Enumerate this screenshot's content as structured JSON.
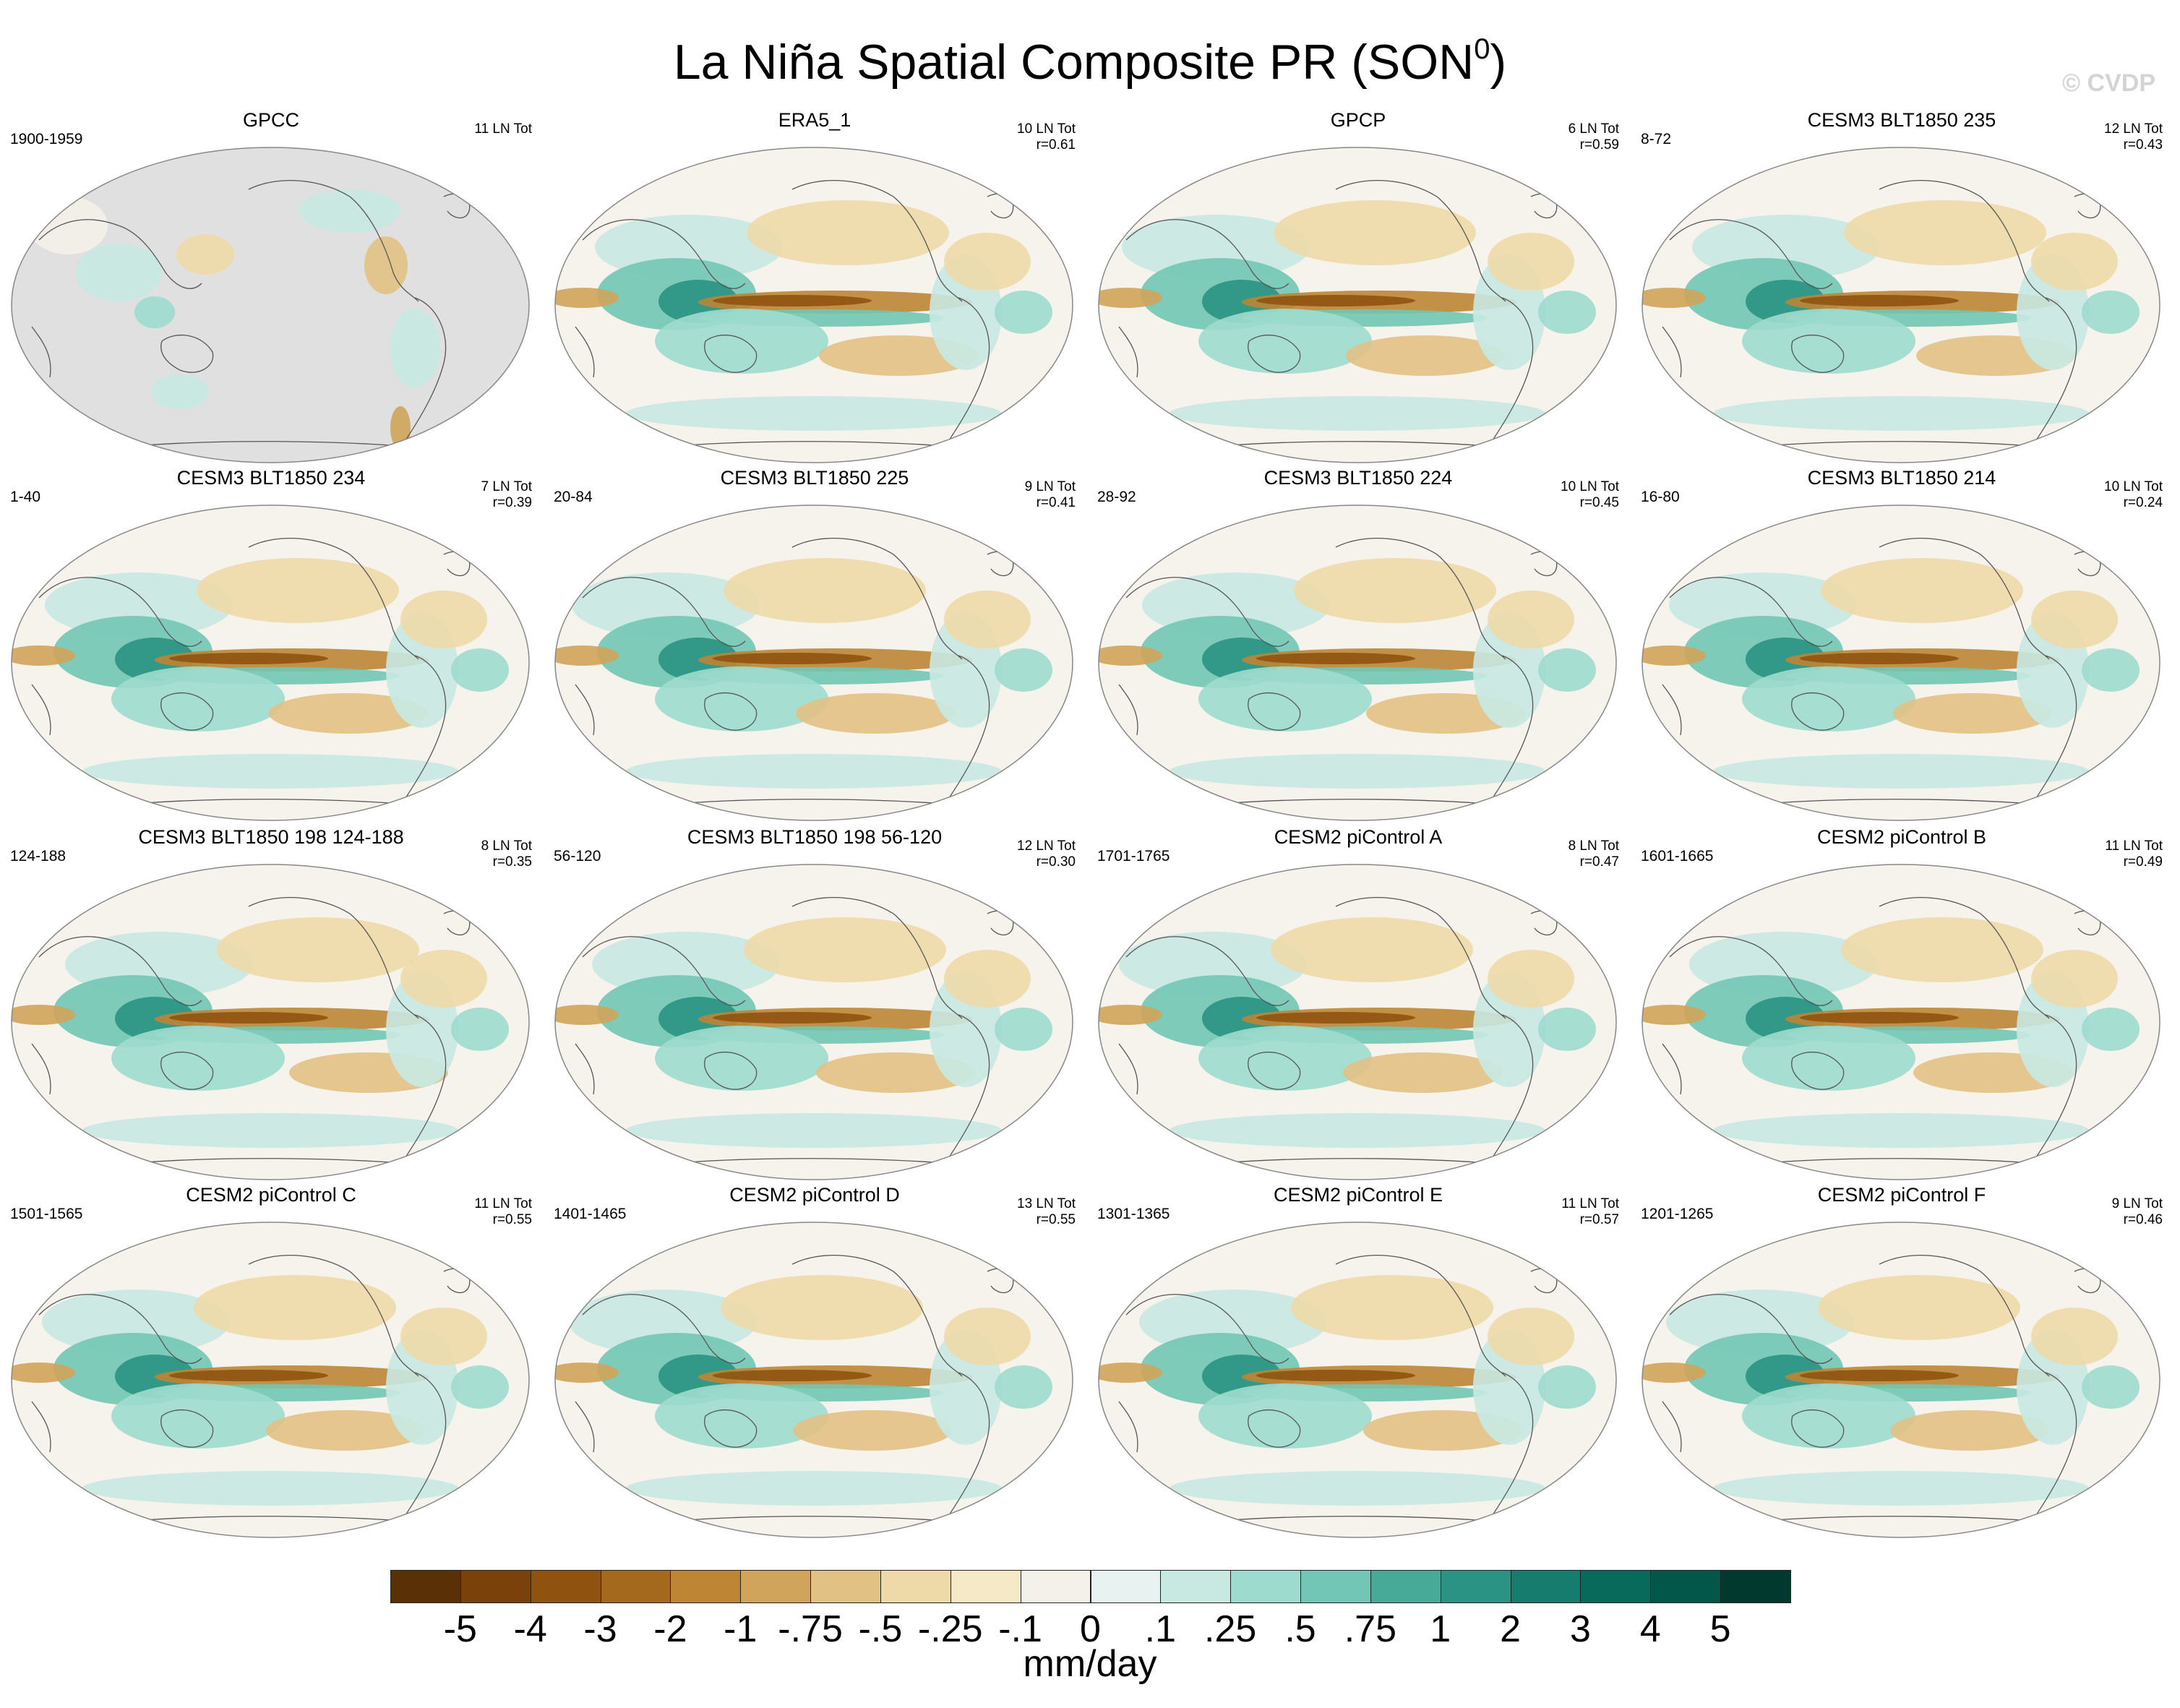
{
  "figure": {
    "title": "La Niña Spatial Composite PR (SON",
    "title_superscript": "0",
    "title_close": ")",
    "watermark": "© CVDP",
    "units": "mm/day"
  },
  "panels": [
    {
      "title": "GPCC",
      "years": "1900-1959",
      "stats_line1": "11 LN Tot",
      "stats_line2": "",
      "variant": "obs-land"
    },
    {
      "title": "ERA5_1",
      "years": "",
      "stats_line1": "10 LN Tot",
      "stats_line2": "r=0.61",
      "variant": "obs"
    },
    {
      "title": "GPCP",
      "years": "",
      "stats_line1": "6 LN Tot",
      "stats_line2": "r=0.59",
      "variant": "obs"
    },
    {
      "title": "CESM3 BLT1850 235",
      "years": "8-72",
      "stats_line1": "12 LN Tot",
      "stats_line2": "r=0.43",
      "variant": "model"
    },
    {
      "title": "CESM3 BLT1850 234",
      "years": "1-40",
      "stats_line1": "7 LN Tot",
      "stats_line2": "r=0.39",
      "variant": "model"
    },
    {
      "title": "CESM3 BLT1850 225",
      "years": "20-84",
      "stats_line1": "9 LN Tot",
      "stats_line2": "r=0.41",
      "variant": "model"
    },
    {
      "title": "CESM3 BLT1850 224",
      "years": "28-92",
      "stats_line1": "10 LN Tot",
      "stats_line2": "r=0.45",
      "variant": "model"
    },
    {
      "title": "CESM3 BLT1850 214",
      "years": "16-80",
      "stats_line1": "10 LN Tot",
      "stats_line2": "r=0.24",
      "variant": "model"
    },
    {
      "title": "CESM3 BLT1850 198 124-188",
      "years": "124-188",
      "stats_line1": "8 LN Tot",
      "stats_line2": "r=0.35",
      "variant": "model"
    },
    {
      "title": "CESM3 BLT1850 198 56-120",
      "years": "56-120",
      "stats_line1": "12 LN Tot",
      "stats_line2": "r=0.30",
      "variant": "model"
    },
    {
      "title": "CESM2 piControl A",
      "years": "1701-1765",
      "stats_line1": "8 LN Tot",
      "stats_line2": "r=0.47",
      "variant": "model"
    },
    {
      "title": "CESM2 piControl B",
      "years": "1601-1665",
      "stats_line1": "11 LN Tot",
      "stats_line2": "r=0.49",
      "variant": "model"
    },
    {
      "title": "CESM2 piControl C",
      "years": "1501-1565",
      "stats_line1": "11 LN Tot",
      "stats_line2": "r=0.55",
      "variant": "model"
    },
    {
      "title": "CESM2 piControl D",
      "years": "1401-1465",
      "stats_line1": "13 LN Tot",
      "stats_line2": "r=0.55",
      "variant": "model"
    },
    {
      "title": "CESM2 piControl E",
      "years": "1301-1365",
      "stats_line1": "11 LN Tot",
      "stats_line2": "r=0.57",
      "variant": "model"
    },
    {
      "title": "CESM2 piControl F",
      "years": "1201-1265",
      "stats_line1": "9 LN Tot",
      "stats_line2": "r=0.46",
      "variant": "model"
    }
  ],
  "colorbar": {
    "colors": [
      "#5a3006",
      "#7a420a",
      "#8f530f",
      "#a5691e",
      "#bd8534",
      "#d0a45a",
      "#e2c184",
      "#eedaa8",
      "#f5e9c8",
      "#f4f1ea",
      "#e8f2f0",
      "#c8e9e2",
      "#9edbcf",
      "#72c6b5",
      "#47aa98",
      "#2a9384",
      "#167d6e",
      "#076a5a",
      "#02564a",
      "#01392f"
    ],
    "labels": [
      "-5",
      "-4",
      "-3",
      "-2",
      "-1",
      "-.75",
      "-.5",
      "-.25",
      "-.1",
      "0",
      ".1",
      ".25",
      ".5",
      ".75",
      "1",
      "2",
      "3",
      "4",
      "5"
    ]
  }
}
